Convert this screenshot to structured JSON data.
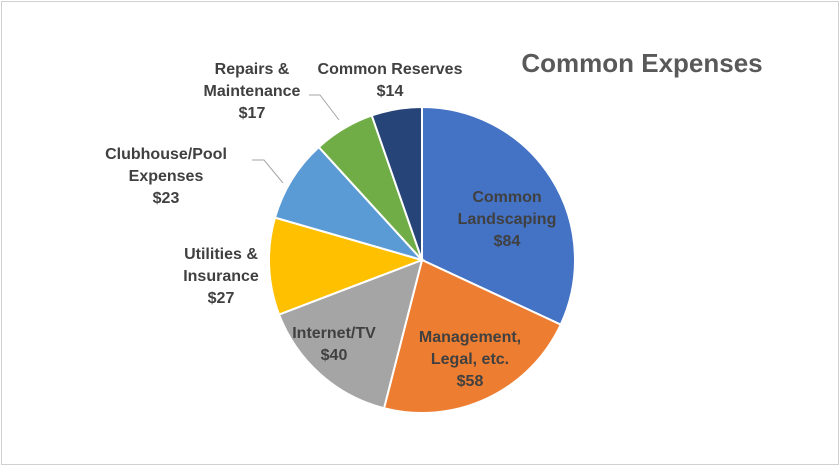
{
  "chart_data": {
    "type": "pie",
    "title": "Common Expenses",
    "categories": [
      "Common Landscaping",
      "Management, Legal, etc.",
      "Internet/TV",
      "Utilities & Insurance",
      "Clubhouse/Pool Expenses",
      "Repairs & Maintenance",
      "Common Reserves"
    ],
    "values": [
      84,
      58,
      40,
      27,
      23,
      17,
      14
    ],
    "value_labels": [
      "$84",
      "$58",
      "$40",
      "$27",
      "$23",
      "$17",
      "$14"
    ],
    "colors": [
      "#4472c4",
      "#ed7d31",
      "#a5a5a5",
      "#ffc000",
      "#5b9bd5",
      "#70ad47",
      "#264478"
    ],
    "legend": "none",
    "grid": false
  }
}
